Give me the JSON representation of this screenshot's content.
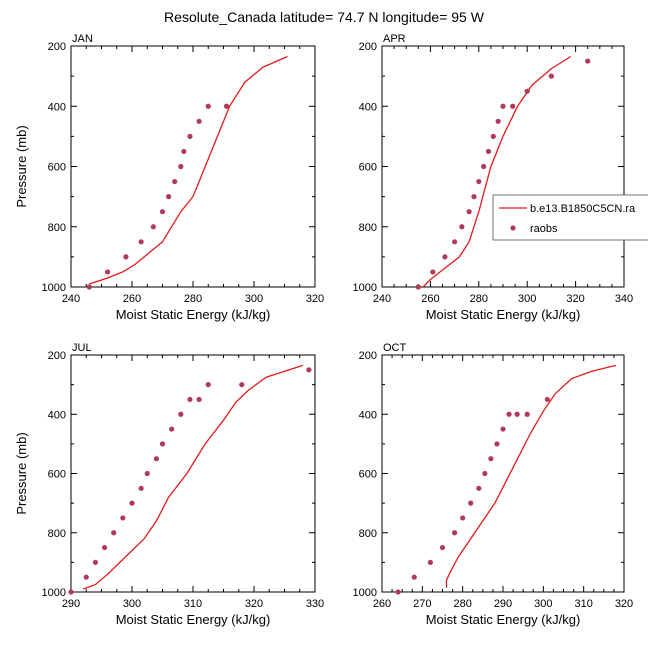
{
  "title": "Resolute_Canada  latitude= 74.7 N longitude= 95 W",
  "chart_data": [
    {
      "type": "line",
      "panel": "JAN",
      "xlabel": "Moist Static Energy (kJ/kg)",
      "ylabel": "Pressure (mb)",
      "xlim": [
        240,
        320
      ],
      "xticks": [
        240,
        260,
        280,
        300,
        320
      ],
      "ylim": [
        1000,
        200
      ],
      "yticks": [
        200,
        400,
        600,
        800,
        1000
      ],
      "series": [
        {
          "name": "b.e13.B1850C5CN.ra",
          "style": "line",
          "x": [
            246,
            252,
            257,
            261,
            264,
            267,
            270,
            273,
            276,
            280,
            284,
            288,
            292,
            297,
            303,
            311
          ],
          "y": [
            990,
            970,
            950,
            925,
            900,
            875,
            850,
            800,
            750,
            700,
            600,
            500,
            400,
            320,
            270,
            235
          ]
        },
        {
          "name": "raobs",
          "style": "points",
          "x": [
            246,
            252,
            258,
            263,
            267,
            270,
            272,
            274,
            276,
            277,
            279,
            282,
            285,
            291
          ],
          "y": [
            1000,
            950,
            900,
            850,
            800,
            750,
            700,
            650,
            600,
            550,
            500,
            450,
            400,
            400
          ]
        }
      ]
    },
    {
      "type": "line",
      "panel": "APR",
      "xlabel": "Moist Static Energy (kJ/kg)",
      "ylabel": "",
      "xlim": [
        240,
        340
      ],
      "xticks": [
        240,
        260,
        280,
        300,
        320,
        340
      ],
      "ylim": [
        1000,
        200
      ],
      "yticks": [
        200,
        400,
        600,
        800,
        1000
      ],
      "series": [
        {
          "name": "b.e13.B1850C5CN.ra",
          "style": "line",
          "x": [
            257,
            260,
            264,
            268,
            272,
            276,
            280,
            285,
            290,
            296,
            302,
            310,
            318
          ],
          "y": [
            1000,
            975,
            950,
            925,
            900,
            850,
            750,
            600,
            500,
            400,
            330,
            275,
            235
          ]
        },
        {
          "name": "raobs",
          "style": "points",
          "x": [
            255,
            261,
            266,
            270,
            273,
            276,
            278,
            280,
            282,
            284,
            286,
            288,
            290,
            294,
            300,
            310,
            325
          ],
          "y": [
            1000,
            950,
            900,
            850,
            800,
            750,
            700,
            650,
            600,
            550,
            500,
            450,
            400,
            400,
            350,
            300,
            250
          ]
        }
      ],
      "legend": {
        "placement": "right-middle",
        "entries": [
          "b.e13.B1850C5CN.ra",
          "raobs"
        ]
      }
    },
    {
      "type": "line",
      "panel": "JUL",
      "xlabel": "Moist Static Energy (kJ/kg)",
      "ylabel": "Pressure (mb)",
      "xlim": [
        290,
        330
      ],
      "xticks": [
        290,
        300,
        310,
        320,
        330
      ],
      "ylim": [
        1000,
        200
      ],
      "yticks": [
        200,
        400,
        600,
        800,
        1000
      ],
      "series": [
        {
          "name": "b.e13.B1850C5CN.ra",
          "style": "line",
          "x": [
            292,
            294,
            296,
            299,
            302,
            304,
            306,
            309,
            312,
            315,
            317,
            319,
            322,
            328
          ],
          "y": [
            990,
            975,
            940,
            880,
            820,
            760,
            680,
            600,
            500,
            420,
            360,
            320,
            275,
            235
          ]
        },
        {
          "name": "raobs",
          "style": "points",
          "x": [
            290,
            292.5,
            294,
            295.5,
            297,
            298.5,
            300,
            301.5,
            302.5,
            304,
            305,
            306.5,
            308,
            309.5,
            311,
            312.5,
            318,
            329
          ],
          "y": [
            1000,
            950,
            900,
            850,
            800,
            750,
            700,
            650,
            600,
            550,
            500,
            450,
            400,
            350,
            350,
            300,
            300,
            250
          ]
        }
      ]
    },
    {
      "type": "line",
      "panel": "OCT",
      "xlabel": "Moist Static Energy (kJ/kg)",
      "ylabel": "",
      "xlim": [
        260,
        320
      ],
      "xticks": [
        260,
        270,
        280,
        290,
        300,
        310,
        320
      ],
      "ylim": [
        1000,
        200
      ],
      "yticks": [
        200,
        400,
        600,
        800,
        1000
      ],
      "series": [
        {
          "name": "b.e13.B1850C5CN.ra",
          "style": "line",
          "x": [
            276,
            276,
            277,
            279,
            282,
            285,
            288,
            291,
            294,
            297,
            300,
            303,
            307,
            312,
            318
          ],
          "y": [
            985,
            960,
            930,
            880,
            820,
            760,
            700,
            620,
            540,
            460,
            390,
            330,
            280,
            255,
            235
          ]
        },
        {
          "name": "raobs",
          "style": "points",
          "x": [
            264,
            268,
            272,
            275,
            278,
            280,
            282,
            284,
            285.5,
            287,
            288.5,
            290,
            291.5,
            293.5,
            296,
            301
          ],
          "y": [
            1000,
            950,
            900,
            850,
            800,
            750,
            700,
            650,
            600,
            550,
            500,
            450,
            400,
            400,
            400,
            350
          ]
        }
      ]
    }
  ]
}
